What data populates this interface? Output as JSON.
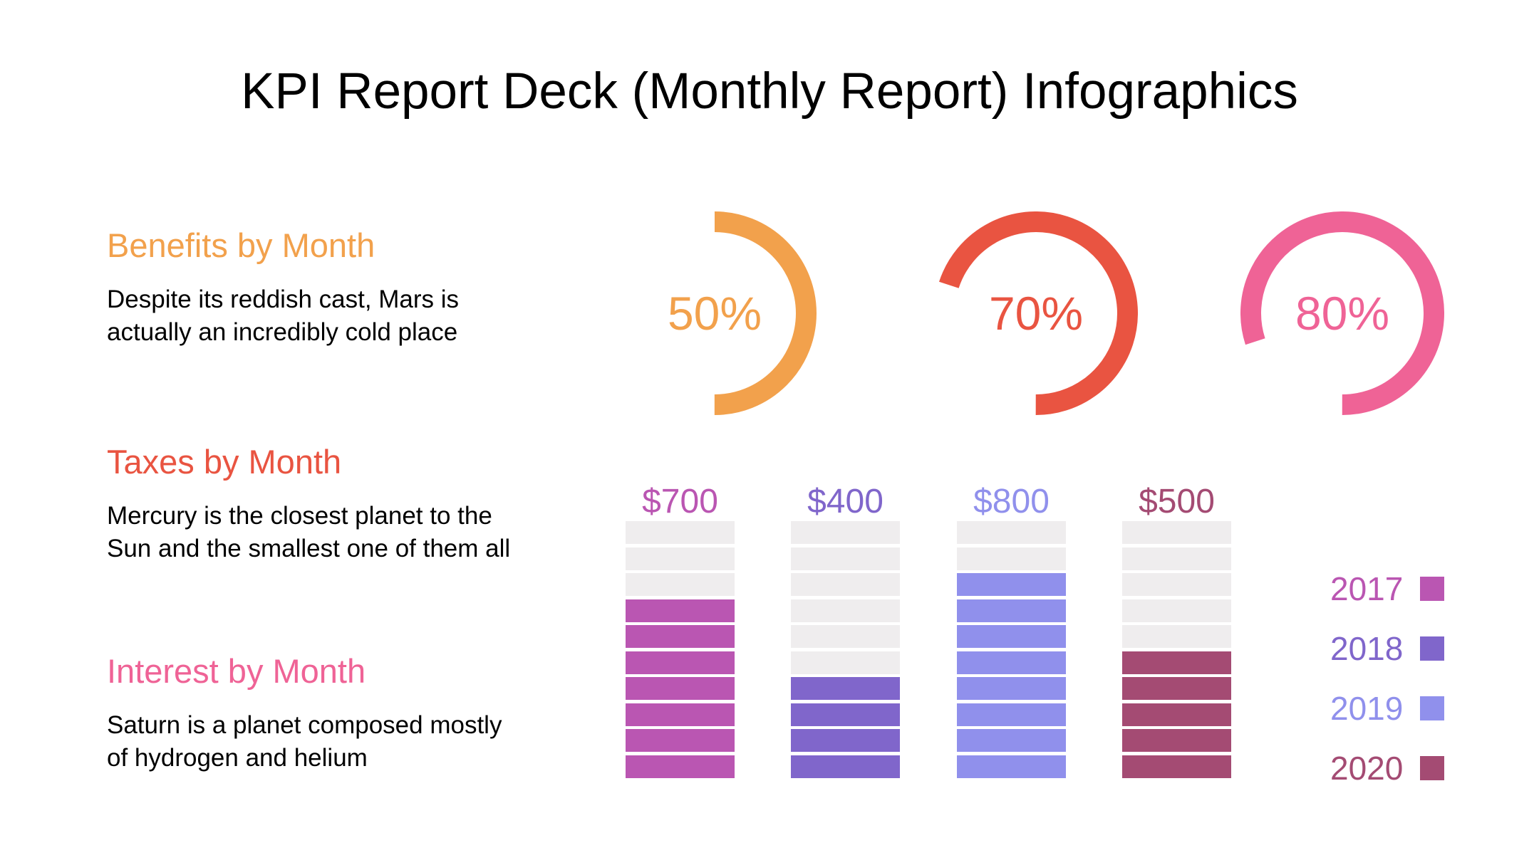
{
  "title": "KPI Report Deck (Monthly Report) Infographics",
  "sections": [
    {
      "heading": "Benefits by Month",
      "color": "#F2A14C",
      "body_lines": [
        "Despite its reddish cast, Mars is",
        "actually an incredibly cold place"
      ]
    },
    {
      "heading": "Taxes by Month",
      "color": "#E95441",
      "body_lines": [
        "Mercury is the closest planet to the",
        "Sun and the smallest one of them all"
      ]
    },
    {
      "heading": "Interest by Month",
      "color": "#EF6396",
      "body_lines": [
        "Saturn is a planet composed mostly",
        "of hydrogen and helium"
      ]
    }
  ],
  "chart_data": [
    {
      "type": "donut",
      "title": "KPI progress rings (one per section)",
      "series": [
        {
          "label": "50%",
          "value": 50,
          "color": "#F2A14C"
        },
        {
          "label": "70%",
          "value": 70,
          "color": "#E95441"
        },
        {
          "label": "80%",
          "value": 80,
          "color": "#EF6396"
        }
      ],
      "layout": {
        "arc_ends_at": "bottom (6 o'clock)",
        "direction": "clockwise",
        "track": "none",
        "label_position": "center"
      }
    },
    {
      "type": "bar",
      "title": "Segmented yearly bars",
      "categories": [
        "2017",
        "2018",
        "2019",
        "2020"
      ],
      "values": [
        700,
        400,
        800,
        500
      ],
      "value_labels": [
        "$700",
        "$400",
        "$800",
        "$500"
      ],
      "colors": [
        "#BA56B2",
        "#8066CB",
        "#9090EC",
        "#A44B73"
      ],
      "segments_total": 10,
      "segment_value": 100,
      "empty_color": "#EFEDEE",
      "ylim": [
        0,
        1000
      ],
      "grid": false,
      "legend": {
        "position": "right",
        "entries": [
          "2017",
          "2018",
          "2019",
          "2020"
        ],
        "swatch_side": "right-of-text"
      }
    }
  ]
}
